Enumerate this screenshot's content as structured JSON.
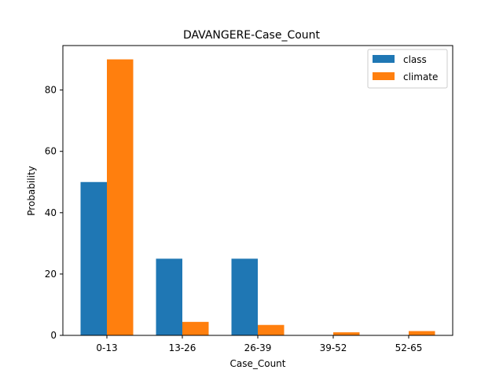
{
  "chart_data": {
    "type": "bar",
    "title": "DAVANGERE-Case_Count",
    "xlabel": "Case_Count",
    "ylabel": "Probability",
    "categories": [
      "0-13",
      "13-26",
      "26-39",
      "39-52",
      "52-65"
    ],
    "series": [
      {
        "name": "class",
        "values": [
          50,
          25,
          25,
          0,
          0
        ],
        "color": "#1f77b4"
      },
      {
        "name": "climate",
        "values": [
          90,
          4.4,
          3.4,
          1.0,
          1.4
        ],
        "color": "#ff7f0e"
      }
    ],
    "ylim": [
      0,
      94.5
    ],
    "yticks": [
      0,
      20,
      40,
      60,
      80
    ],
    "grid": false,
    "legend_position": "top-right"
  }
}
